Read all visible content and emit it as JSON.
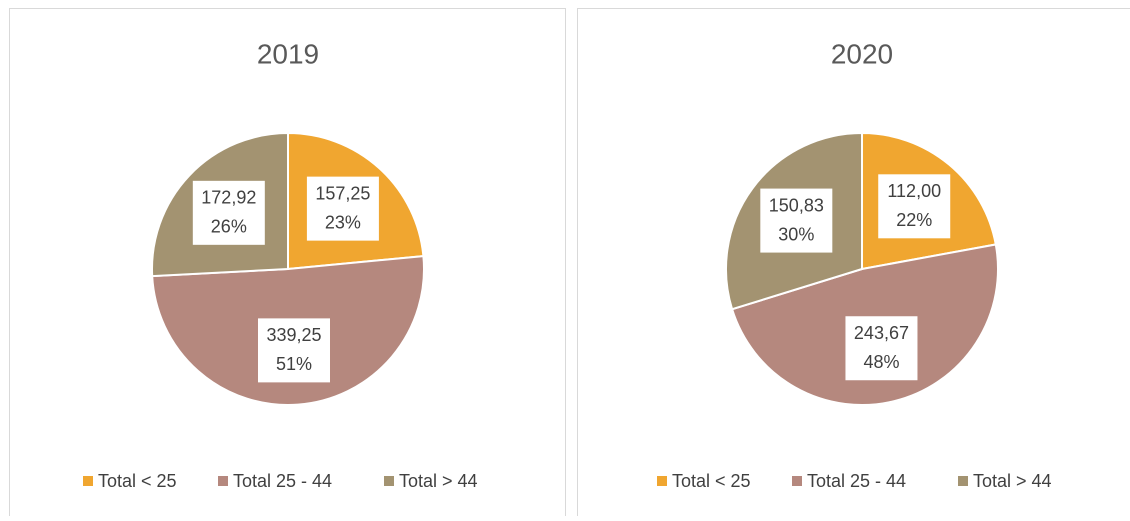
{
  "chart_data": [
    {
      "type": "pie",
      "title": "2019",
      "categories": [
        "Total < 25",
        "Total 25 - 44",
        "Total > 44"
      ],
      "values": [
        157.25,
        339.25,
        172.92
      ],
      "value_labels": [
        "157,25",
        "339,25",
        "172,92"
      ],
      "percents": [
        23,
        51,
        26
      ],
      "percent_labels": [
        "23%",
        "51%",
        "26%"
      ],
      "colors": [
        "#f0a630",
        "#b5887e",
        "#a39371"
      ],
      "legend": "bottom"
    },
    {
      "type": "pie",
      "title": "2020",
      "categories": [
        "Total < 25",
        "Total 25 - 44",
        "Total > 44"
      ],
      "values": [
        112.0,
        243.67,
        150.83
      ],
      "value_labels": [
        "112,00",
        "243,67",
        "150,83"
      ],
      "percents": [
        22,
        48,
        30
      ],
      "percent_labels": [
        "22%",
        "48%",
        "30%"
      ],
      "colors": [
        "#f0a630",
        "#b5887e",
        "#a39371"
      ],
      "legend": "bottom"
    }
  ]
}
